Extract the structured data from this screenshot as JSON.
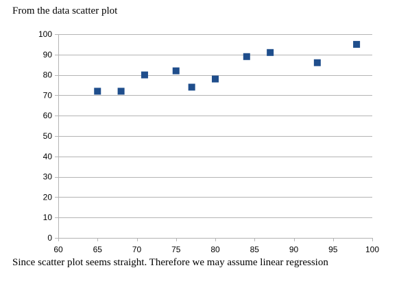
{
  "captions": {
    "top": "From the data scatter plot",
    "bottom": "Since scatter plot seems straight. Therefore we may assume linear regression"
  },
  "chart_data": {
    "type": "scatter",
    "title": "",
    "xlabel": "",
    "ylabel": "",
    "xlim": [
      60,
      100
    ],
    "ylim": [
      0,
      100
    ],
    "xticks": [
      60,
      65,
      70,
      75,
      80,
      85,
      90,
      95,
      100
    ],
    "yticks": [
      0,
      10,
      20,
      30,
      40,
      50,
      60,
      70,
      80,
      90,
      100
    ],
    "grid": "horizontal",
    "legend": "none",
    "marker": "square",
    "marker_color": "#1f4e8c",
    "points": [
      {
        "x": 65,
        "y": 72
      },
      {
        "x": 68,
        "y": 72
      },
      {
        "x": 71,
        "y": 80
      },
      {
        "x": 75,
        "y": 82
      },
      {
        "x": 77,
        "y": 74
      },
      {
        "x": 80,
        "y": 78
      },
      {
        "x": 84,
        "y": 89
      },
      {
        "x": 87,
        "y": 91
      },
      {
        "x": 93,
        "y": 86
      },
      {
        "x": 98,
        "y": 95
      }
    ]
  }
}
